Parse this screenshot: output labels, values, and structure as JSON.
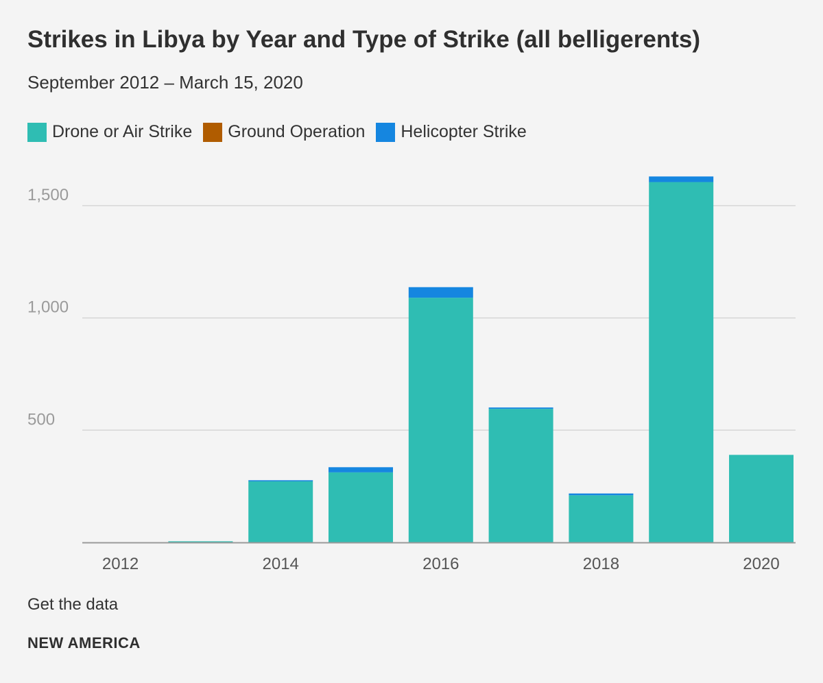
{
  "chart_data": {
    "type": "bar",
    "stacked": true,
    "title": "Strikes in Libya by Year and Type of Strike (all belligerents)",
    "subtitle": "September 2012 – March 15, 2020",
    "categories": [
      "2012",
      "2013",
      "2014",
      "2015",
      "2016",
      "2017",
      "2018",
      "2019",
      "2020"
    ],
    "x_tick_labels": [
      "2012",
      "2014",
      "2016",
      "2018",
      "2020"
    ],
    "series": [
      {
        "name": "Drone or Air Strike",
        "color": "#2fbdb3",
        "values": [
          0,
          5,
          272,
          312,
          1090,
          595,
          210,
          1605,
          390
        ]
      },
      {
        "name": "Ground Operation",
        "color": "#b05c00",
        "values": [
          0,
          0,
          0,
          0,
          0,
          0,
          0,
          0,
          0
        ]
      },
      {
        "name": "Helicopter Strike",
        "color": "#1586e0",
        "values": [
          0,
          0,
          5,
          23,
          47,
          6,
          8,
          25,
          0
        ]
      }
    ],
    "y_ticks": [
      500,
      1000,
      1500
    ],
    "y_tick_labels": [
      "500",
      "1,000",
      "1,500"
    ],
    "ylim": [
      0,
      1700
    ],
    "grid": true,
    "legend_position": "top-left",
    "xlabel": "",
    "ylabel": ""
  },
  "footer": {
    "get_data_label": "Get the data",
    "brand": "NEW AMERICA"
  }
}
